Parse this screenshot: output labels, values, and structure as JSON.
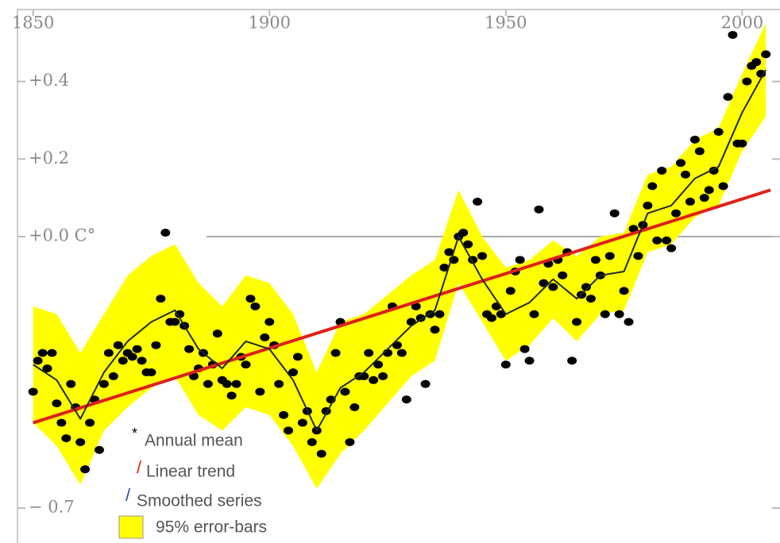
{
  "chart_data": {
    "type": "line",
    "xlim": [
      1843,
      2008
    ],
    "ylim": [
      -0.79,
      0.61
    ],
    "xticks": [
      1850,
      1900,
      1950,
      2000
    ],
    "yticks": [
      {
        "value": 0.4,
        "label": "+0.4"
      },
      {
        "value": 0.2,
        "label": "+0.2"
      },
      {
        "value": 0,
        "label": "+0.0 C°"
      },
      {
        "value": -0.7,
        "label": "− 0.7"
      }
    ],
    "reference_line": 0,
    "x": [
      1850,
      1851,
      1852,
      1853,
      1854,
      1855,
      1856,
      1857,
      1858,
      1859,
      1860,
      1861,
      1862,
      1863,
      1864,
      1865,
      1866,
      1867,
      1868,
      1869,
      1870,
      1871,
      1872,
      1873,
      1874,
      1875,
      1876,
      1877,
      1878,
      1879,
      1880,
      1881,
      1882,
      1883,
      1884,
      1885,
      1886,
      1887,
      1888,
      1889,
      1890,
      1891,
      1892,
      1893,
      1894,
      1895,
      1896,
      1897,
      1898,
      1899,
      1900,
      1901,
      1902,
      1903,
      1904,
      1905,
      1906,
      1907,
      1908,
      1909,
      1910,
      1911,
      1912,
      1913,
      1914,
      1915,
      1916,
      1917,
      1918,
      1919,
      1920,
      1921,
      1922,
      1923,
      1924,
      1925,
      1926,
      1927,
      1928,
      1929,
      1930,
      1931,
      1932,
      1933,
      1934,
      1935,
      1936,
      1937,
      1938,
      1939,
      1940,
      1941,
      1942,
      1943,
      1944,
      1945,
      1946,
      1947,
      1948,
      1949,
      1950,
      1951,
      1952,
      1953,
      1954,
      1955,
      1956,
      1957,
      1958,
      1959,
      1960,
      1961,
      1962,
      1963,
      1964,
      1965,
      1966,
      1967,
      1968,
      1969,
      1970,
      1971,
      1972,
      1973,
      1974,
      1975,
      1976,
      1977,
      1978,
      1979,
      1980,
      1981,
      1982,
      1983,
      1984,
      1985,
      1986,
      1987,
      1988,
      1989,
      1990,
      1991,
      1992,
      1993,
      1994,
      1995,
      1996,
      1997,
      1998,
      1999,
      2000,
      2001,
      2002,
      2003,
      2004,
      2005
    ],
    "series": [
      {
        "name": "95% error-bars",
        "type": "band",
        "color": "#ffff00",
        "x": [
          1850,
          1855,
          1860,
          1865,
          1870,
          1875,
          1880,
          1885,
          1890,
          1895,
          1900,
          1905,
          1910,
          1915,
          1920,
          1925,
          1930,
          1935,
          1940,
          1945,
          1950,
          1955,
          1960,
          1965,
          1970,
          1975,
          1980,
          1985,
          1990,
          1995,
          2000,
          2005
        ],
        "upper": [
          -0.18,
          -0.2,
          -0.3,
          -0.2,
          -0.1,
          -0.05,
          -0.02,
          -0.12,
          -0.18,
          -0.1,
          -0.12,
          -0.2,
          -0.35,
          -0.22,
          -0.2,
          -0.15,
          -0.1,
          -0.06,
          0.12,
          0.0,
          -0.08,
          -0.06,
          -0.01,
          -0.05,
          0.0,
          0.01,
          0.16,
          0.18,
          0.25,
          0.28,
          0.42,
          0.55
        ],
        "lower": [
          -0.48,
          -0.54,
          -0.64,
          -0.5,
          -0.44,
          -0.39,
          -0.36,
          -0.46,
          -0.5,
          -0.44,
          -0.46,
          -0.54,
          -0.65,
          -0.56,
          -0.5,
          -0.43,
          -0.36,
          -0.32,
          -0.12,
          -0.22,
          -0.32,
          -0.28,
          -0.21,
          -0.27,
          -0.2,
          -0.19,
          -0.04,
          -0.02,
          0.05,
          0.08,
          0.22,
          0.31
        ]
      },
      {
        "name": "Annual mean",
        "type": "scatter",
        "color": "#000000",
        "values": [
          -0.4,
          -0.32,
          -0.3,
          -0.34,
          -0.3,
          -0.43,
          -0.48,
          -0.52,
          -0.38,
          -0.44,
          -0.53,
          -0.6,
          -0.48,
          -0.42,
          -0.55,
          -0.38,
          -0.3,
          -0.36,
          -0.28,
          -0.32,
          -0.3,
          -0.31,
          -0.29,
          -0.32,
          -0.35,
          -0.35,
          -0.28,
          -0.16,
          0.01,
          -0.22,
          -0.22,
          -0.2,
          -0.23,
          -0.29,
          -0.36,
          -0.34,
          -0.3,
          -0.38,
          -0.33,
          -0.25,
          -0.37,
          -0.38,
          -0.41,
          -0.38,
          -0.31,
          -0.33,
          -0.16,
          -0.18,
          -0.4,
          -0.26,
          -0.22,
          -0.28,
          -0.38,
          -0.46,
          -0.5,
          -0.35,
          -0.31,
          -0.48,
          -0.45,
          -0.53,
          -0.5,
          -0.56,
          -0.45,
          -0.42,
          -0.3,
          -0.22,
          -0.4,
          -0.53,
          -0.44,
          -0.36,
          -0.36,
          -0.3,
          -0.37,
          -0.33,
          -0.36,
          -0.3,
          -0.18,
          -0.28,
          -0.3,
          -0.42,
          -0.22,
          -0.18,
          -0.21,
          -0.38,
          -0.2,
          -0.24,
          -0.2,
          -0.08,
          -0.04,
          -0.06,
          0.0,
          0.01,
          -0.02,
          -0.06,
          0.09,
          -0.05,
          -0.2,
          -0.21,
          -0.18,
          -0.2,
          -0.33,
          -0.14,
          -0.09,
          -0.06,
          -0.29,
          -0.32,
          -0.2,
          0.07,
          -0.12,
          -0.07,
          -0.13,
          -0.06,
          -0.1,
          -0.04,
          -0.32,
          -0.22,
          -0.15,
          -0.13,
          -0.16,
          -0.06,
          -0.1,
          -0.2,
          -0.05,
          0.06,
          -0.2,
          -0.14,
          -0.22,
          0.02,
          -0.05,
          0.03,
          0.08,
          0.13,
          -0.01,
          0.17,
          -0.01,
          -0.03,
          0.06,
          0.19,
          0.16,
          0.09,
          0.25,
          0.22,
          0.1,
          0.12,
          0.17,
          0.27,
          0.13,
          0.36,
          0.52,
          0.24,
          0.24,
          0.4,
          0.44,
          0.45,
          0.42,
          0.47
        ]
      },
      {
        "name": "Linear trend",
        "type": "line",
        "color": "#e0201b",
        "width": 4,
        "x": [
          1850,
          2006
        ],
        "values": [
          -0.48,
          0.12
        ]
      },
      {
        "name": "Smoothed series",
        "type": "line",
        "color": "#1f2a2a",
        "width": 2,
        "x": [
          1850,
          1855,
          1860,
          1865,
          1870,
          1875,
          1880,
          1885,
          1890,
          1895,
          1900,
          1905,
          1910,
          1915,
          1920,
          1925,
          1930,
          1935,
          1940,
          1945,
          1950,
          1955,
          1960,
          1965,
          1970,
          1975,
          1980,
          1985,
          1990,
          1995,
          2000,
          2005
        ],
        "values": [
          -0.33,
          -0.37,
          -0.47,
          -0.35,
          -0.27,
          -0.22,
          -0.19,
          -0.29,
          -0.34,
          -0.27,
          -0.29,
          -0.37,
          -0.5,
          -0.39,
          -0.35,
          -0.29,
          -0.23,
          -0.19,
          0.0,
          -0.11,
          -0.2,
          -0.17,
          -0.11,
          -0.16,
          -0.1,
          -0.09,
          0.06,
          0.08,
          0.15,
          0.18,
          0.32,
          0.43
        ]
      }
    ]
  }
}
